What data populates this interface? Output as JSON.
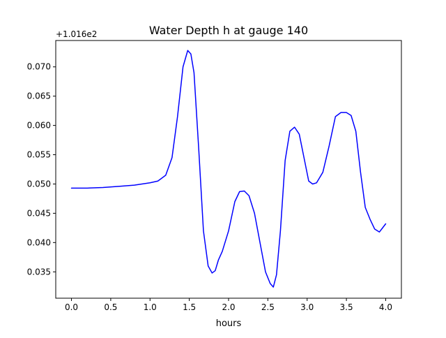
{
  "chart_data": {
    "type": "line",
    "title": "Water Depth h at gauge 140",
    "xlabel": "hours",
    "ylabel": "",
    "offset_label": "+1.016e2",
    "xlim": [
      -0.2,
      4.2
    ],
    "ylim": [
      0.0305,
      0.0745
    ],
    "xticks": [
      0.0,
      0.5,
      1.0,
      1.5,
      2.0,
      2.5,
      3.0,
      3.5,
      4.0
    ],
    "xtick_labels": [
      "0.0",
      "0.5",
      "1.0",
      "1.5",
      "2.0",
      "2.5",
      "3.0",
      "3.5",
      "4.0"
    ],
    "yticks": [
      0.035,
      0.04,
      0.045,
      0.05,
      0.055,
      0.06,
      0.065,
      0.07
    ],
    "ytick_labels": [
      "0.035",
      "0.040",
      "0.045",
      "0.050",
      "0.055",
      "0.060",
      "0.065",
      "0.070"
    ],
    "grid": false,
    "series": [
      {
        "color": "#0000ff",
        "x": [
          0.0,
          0.2,
          0.4,
          0.6,
          0.8,
          1.0,
          1.1,
          1.2,
          1.28,
          1.35,
          1.42,
          1.48,
          1.52,
          1.56,
          1.62,
          1.68,
          1.74,
          1.79,
          1.83,
          1.87,
          1.92,
          2.0,
          2.08,
          2.14,
          2.2,
          2.26,
          2.33,
          2.4,
          2.47,
          2.53,
          2.57,
          2.61,
          2.66,
          2.72,
          2.78,
          2.84,
          2.9,
          2.96,
          3.02,
          3.07,
          3.12,
          3.2,
          3.28,
          3.36,
          3.43,
          3.5,
          3.56,
          3.62,
          3.68,
          3.74,
          3.8,
          3.86,
          3.92,
          3.96,
          4.0
        ],
        "y": [
          0.0493,
          0.0493,
          0.0494,
          0.0496,
          0.0498,
          0.0502,
          0.0505,
          0.0515,
          0.0545,
          0.0615,
          0.07,
          0.0728,
          0.0722,
          0.069,
          0.056,
          0.042,
          0.036,
          0.0348,
          0.0352,
          0.037,
          0.0385,
          0.042,
          0.047,
          0.0487,
          0.0488,
          0.048,
          0.045,
          0.04,
          0.035,
          0.033,
          0.0324,
          0.0345,
          0.042,
          0.054,
          0.059,
          0.0597,
          0.0585,
          0.0545,
          0.0505,
          0.05,
          0.0502,
          0.052,
          0.0565,
          0.0615,
          0.0622,
          0.0622,
          0.0617,
          0.059,
          0.052,
          0.046,
          0.044,
          0.0423,
          0.0418,
          0.0425,
          0.0432
        ]
      }
    ]
  }
}
